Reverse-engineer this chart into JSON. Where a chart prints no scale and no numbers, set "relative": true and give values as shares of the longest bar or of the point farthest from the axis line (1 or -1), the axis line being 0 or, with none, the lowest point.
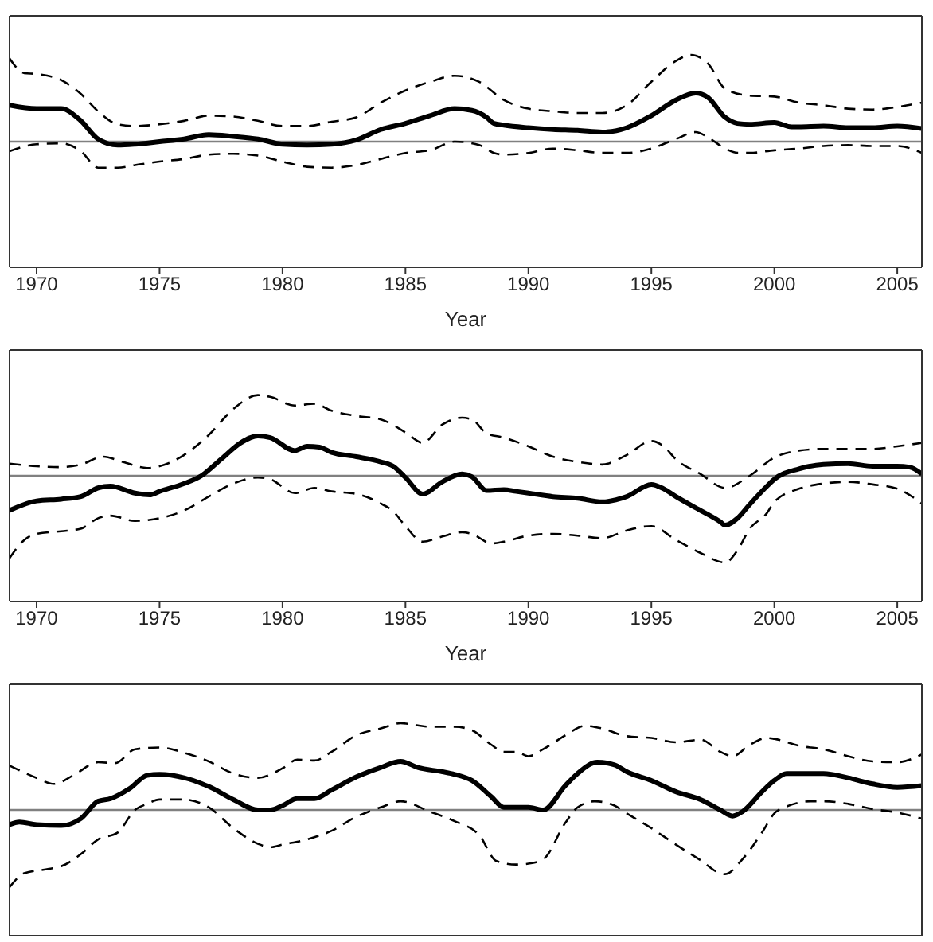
{
  "chart_data": [
    {
      "type": "line",
      "relative": true,
      "xlabel": "Year",
      "xlim": [
        1968.9,
        2006
      ],
      "xticks": [
        1970,
        1975,
        1980,
        1985,
        1990,
        1995,
        2000,
        2005
      ],
      "tick_labels": "x",
      "marker": "none",
      "ref_lines": [
        {
          "axis": "y",
          "value": 0,
          "color": "#808080"
        }
      ],
      "series": [
        {
          "color": "#000000",
          "line_style": "solid",
          "x": [
            1968.9,
            1970,
            1971,
            1971.8,
            1972.5,
            1973.3,
            1974,
            1975,
            1976,
            1977,
            1978,
            1979,
            1980,
            1981,
            1982,
            1983,
            1984,
            1985,
            1986,
            1987,
            1987.7,
            1988.3,
            1988.6,
            1989,
            1990,
            1991,
            1992,
            1993,
            1994,
            1995,
            1996,
            1996.8,
            1997.3,
            1998,
            1998.5,
            1999,
            2000,
            2000.7,
            2001,
            2002,
            2003,
            2004,
            2005,
            2006
          ],
          "values": [
            0.42,
            0.38,
            0.38,
            0.24,
            0.03,
            -0.04,
            -0.03,
            0,
            0.03,
            0.08,
            0.06,
            0.03,
            -0.03,
            -0.04,
            -0.03,
            0.02,
            0.14,
            0.21,
            0.3,
            0.38,
            0.36,
            0.28,
            0.21,
            0.19,
            0.16,
            0.14,
            0.13,
            0.11,
            0.16,
            0.3,
            0.48,
            0.56,
            0.51,
            0.28,
            0.21,
            0.2,
            0.22,
            0.17,
            0.17,
            0.18,
            0.16,
            0.16,
            0.18,
            0.15
          ]
        },
        {
          "color": "#000000",
          "line_style": "dashed",
          "x": [
            1968.9,
            1969.5,
            1970,
            1971,
            1971.8,
            1972.5,
            1973.3,
            1974,
            1975,
            1976,
            1977,
            1978,
            1979,
            1980,
            1981,
            1982,
            1983,
            1984,
            1985,
            1986,
            1987,
            1988,
            1989,
            1990,
            1991,
            1992,
            1993,
            1994,
            1995,
            1996,
            1996.6,
            1997.3,
            1998,
            1999,
            2000,
            2001,
            2002,
            2003,
            2004,
            2005,
            2006
          ],
          "values": [
            0.96,
            0.79,
            0.78,
            0.71,
            0.55,
            0.35,
            0.2,
            0.18,
            0.2,
            0.24,
            0.3,
            0.29,
            0.24,
            0.18,
            0.18,
            0.23,
            0.28,
            0.45,
            0.59,
            0.69,
            0.76,
            0.69,
            0.48,
            0.38,
            0.35,
            0.33,
            0.33,
            0.42,
            0.69,
            0.93,
            1,
            0.9,
            0.61,
            0.53,
            0.52,
            0.45,
            0.42,
            0.38,
            0.37,
            0.4,
            0.45
          ]
        },
        {
          "color": "#000000",
          "line_style": "dashed",
          "x": [
            1968.9,
            1970,
            1971,
            1971.8,
            1972.5,
            1973.3,
            1974,
            1975,
            1976,
            1977,
            1978,
            1979,
            1980,
            1981,
            1982,
            1983,
            1984,
            1985,
            1986,
            1987,
            1988,
            1988.6,
            1989,
            1990,
            1991,
            1992,
            1993,
            1994,
            1995,
            1996,
            1996.8,
            1997.3,
            1998,
            1998.5,
            1999,
            2000,
            2001,
            2002,
            2003,
            2004,
            2005,
            2006
          ],
          "values": [
            -0.11,
            -0.03,
            -0.02,
            -0.11,
            -0.3,
            -0.3,
            -0.27,
            -0.23,
            -0.2,
            -0.15,
            -0.14,
            -0.16,
            -0.23,
            -0.29,
            -0.3,
            -0.27,
            -0.2,
            -0.13,
            -0.1,
            0,
            -0.04,
            -0.13,
            -0.15,
            -0.13,
            -0.08,
            -0.1,
            -0.13,
            -0.13,
            -0.08,
            0.03,
            0.11,
            0.05,
            -0.08,
            -0.13,
            -0.13,
            -0.1,
            -0.08,
            -0.05,
            -0.04,
            -0.05,
            -0.05,
            -0.13
          ]
        }
      ]
    },
    {
      "type": "line",
      "relative": true,
      "xlabel": "Year",
      "xlim": [
        1968.9,
        2006
      ],
      "xticks": [
        1970,
        1975,
        1980,
        1985,
        1990,
        1995,
        2000,
        2005
      ],
      "tick_labels": "x",
      "marker": "none",
      "ref_lines": [
        {
          "axis": "y",
          "value": 0,
          "color": "#808080"
        }
      ],
      "series": [
        {
          "color": "#000000",
          "line_style": "solid",
          "x": [
            1968.9,
            1970,
            1971,
            1971.8,
            1972.5,
            1973,
            1974,
            1974.6,
            1975,
            1976,
            1976.7,
            1977.5,
            1978.3,
            1979,
            1979.5,
            1980.5,
            1981,
            1981.5,
            1982,
            1983,
            1984,
            1984.5,
            1985,
            1985.7,
            1986.5,
            1987.3,
            1987.7,
            1988.3,
            1989,
            1989.5,
            1990,
            1991,
            1992,
            1993,
            1994,
            1995,
            1995.5,
            1996,
            1997,
            1997.8,
            1998,
            1998.5,
            1999,
            1999.7,
            2000,
            2001,
            2002,
            2003,
            2004,
            2005,
            2005.5,
            2006
          ],
          "values": [
            -0.4,
            -0.29,
            -0.27,
            -0.24,
            -0.14,
            -0.12,
            -0.2,
            -0.22,
            -0.18,
            -0.09,
            0.0,
            0.19,
            0.38,
            0.46,
            0.44,
            0.29,
            0.34,
            0.33,
            0.27,
            0.22,
            0.16,
            0.11,
            -0.02,
            -0.21,
            -0.07,
            0.02,
            -0.01,
            -0.17,
            -0.16,
            -0.18,
            -0.2,
            -0.24,
            -0.26,
            -0.3,
            -0.24,
            -0.1,
            -0.15,
            -0.24,
            -0.4,
            -0.53,
            -0.57,
            -0.49,
            -0.33,
            -0.12,
            -0.04,
            0.08,
            0.13,
            0.14,
            0.11,
            0.11,
            0.1,
            0.02
          ]
        },
        {
          "color": "#000000",
          "line_style": "dashed",
          "x": [
            1968.9,
            1970,
            1971,
            1971.8,
            1972.7,
            1973.5,
            1974.5,
            1975,
            1976,
            1977,
            1978,
            1979,
            1979.5,
            1980.5,
            1981.3,
            1982,
            1983,
            1984,
            1985,
            1985.7,
            1986.5,
            1987.3,
            1987.7,
            1988.3,
            1989,
            1990,
            1991,
            1992,
            1993,
            1994,
            1995,
            1995.5,
            1996,
            1997,
            1998,
            1999,
            2000,
            2001,
            2002,
            2003,
            2004,
            2005,
            2006
          ],
          "values": [
            0.14,
            0.11,
            0.1,
            0.13,
            0.22,
            0.16,
            0.09,
            0.11,
            0.24,
            0.47,
            0.77,
            0.93,
            0.91,
            0.81,
            0.83,
            0.75,
            0.69,
            0.65,
            0.5,
            0.38,
            0.59,
            0.67,
            0.65,
            0.49,
            0.44,
            0.34,
            0.22,
            0.16,
            0.13,
            0.24,
            0.4,
            0.34,
            0.19,
            0.02,
            -0.14,
            0.0,
            0.21,
            0.29,
            0.31,
            0.31,
            0.31,
            0.34,
            0.38
          ]
        },
        {
          "color": "#000000",
          "line_style": "dashed",
          "x": [
            1968.9,
            1969.5,
            1970,
            1971,
            1971.8,
            1972.5,
            1973,
            1974,
            1975,
            1976,
            1977,
            1978,
            1979,
            1979.5,
            1980.5,
            1981.3,
            1982,
            1983,
            1984,
            1984.5,
            1985,
            1985.7,
            1986.5,
            1987.3,
            1987.7,
            1988.5,
            1989,
            1990,
            1991,
            1992,
            1993,
            1994,
            1995,
            1996,
            1997,
            1998,
            1998.5,
            1999,
            1999.7,
            2000,
            2001,
            2002,
            2003,
            2004,
            2005,
            2006
          ],
          "values": [
            -0.95,
            -0.74,
            -0.67,
            -0.64,
            -0.61,
            -0.49,
            -0.46,
            -0.52,
            -0.49,
            -0.4,
            -0.24,
            -0.09,
            -0.02,
            -0.04,
            -0.2,
            -0.14,
            -0.18,
            -0.21,
            -0.32,
            -0.41,
            -0.58,
            -0.76,
            -0.7,
            -0.65,
            -0.67,
            -0.78,
            -0.76,
            -0.69,
            -0.67,
            -0.69,
            -0.72,
            -0.63,
            -0.58,
            -0.74,
            -0.89,
            -1,
            -0.86,
            -0.61,
            -0.43,
            -0.3,
            -0.15,
            -0.09,
            -0.07,
            -0.1,
            -0.15,
            -0.32
          ]
        }
      ]
    },
    {
      "type": "line",
      "relative": true,
      "xlim": [
        1968.9,
        2006
      ],
      "xticks": [
        1970,
        1975,
        1980,
        1985,
        1990,
        1995,
        2000,
        2005
      ],
      "tick_labels": false,
      "marker": "none",
      "ref_lines": [
        {
          "axis": "y",
          "value": 0,
          "color": "#808080"
        }
      ],
      "series": [
        {
          "color": "#000000",
          "line_style": "solid",
          "x": [
            1968.9,
            1969.3,
            1970,
            1971,
            1971.8,
            1972.5,
            1973,
            1973.8,
            1974.5,
            1975,
            1976,
            1977,
            1978,
            1979,
            1979.5,
            1980,
            1980.6,
            1981.3,
            1982,
            1983,
            1984,
            1984.8,
            1985.5,
            1986.5,
            1987,
            1987.7,
            1988.5,
            1989,
            1990,
            1990.6,
            1991.5,
            1992,
            1992.8,
            1993.5,
            1994,
            1995,
            1996,
            1997,
            1997.8,
            1998.3,
            1998.7,
            1999.5,
            2000,
            2000.5,
            2001,
            2002,
            2003,
            2004,
            2005,
            2006
          ],
          "values": [
            -0.17,
            -0.14,
            -0.17,
            -0.18,
            -0.1,
            0.1,
            0.13,
            0.25,
            0.4,
            0.41,
            0.37,
            0.27,
            0.12,
            0.0,
            0.0,
            0.05,
            0.13,
            0.13,
            0.23,
            0.38,
            0.49,
            0.56,
            0.49,
            0.44,
            0.41,
            0.34,
            0.15,
            0.03,
            0.03,
            0.0,
            0.28,
            0.42,
            0.55,
            0.52,
            0.44,
            0.34,
            0.21,
            0.12,
            0.0,
            -0.07,
            -0.02,
            0.21,
            0.34,
            0.42,
            0.42,
            0.42,
            0.37,
            0.3,
            0.26,
            0.28
          ]
        },
        {
          "color": "#000000",
          "line_style": "dashed",
          "x": [
            1968.9,
            1970,
            1970.7,
            1971.5,
            1972.5,
            1973.2,
            1974,
            1975,
            1976,
            1977,
            1978,
            1979,
            1980,
            1980.6,
            1981.3,
            1982,
            1983,
            1984,
            1984.8,
            1986,
            1987,
            1987.7,
            1988.5,
            1989,
            1989.5,
            1990,
            1990.6,
            1991.5,
            1992.3,
            1993,
            1994,
            1995,
            1996,
            1997,
            1997.8,
            1998.3,
            1999,
            1999.7,
            2000,
            2001,
            2002,
            2003,
            2004,
            2005,
            2006
          ],
          "values": [
            0.51,
            0.37,
            0.3,
            0.4,
            0.55,
            0.54,
            0.7,
            0.72,
            0.66,
            0.56,
            0.42,
            0.37,
            0.48,
            0.58,
            0.57,
            0.67,
            0.86,
            0.94,
            1,
            0.96,
            0.96,
            0.92,
            0.75,
            0.67,
            0.67,
            0.62,
            0.7,
            0.86,
            0.97,
            0.94,
            0.85,
            0.83,
            0.78,
            0.81,
            0.67,
            0.62,
            0.75,
            0.83,
            0.82,
            0.74,
            0.7,
            0.62,
            0.56,
            0.55,
            0.64
          ]
        },
        {
          "color": "#000000",
          "line_style": "dashed",
          "x": [
            1968.9,
            1969.5,
            1970.5,
            1971,
            1971.8,
            1972.5,
            1973.3,
            1974,
            1974.5,
            1975,
            1976,
            1977,
            1978,
            1979,
            1979.5,
            1980,
            1981,
            1982,
            1983,
            1984,
            1984.8,
            1986,
            1987,
            1988,
            1988.7,
            1989.5,
            1990,
            1990.6,
            1991.5,
            1992,
            1992.7,
            1993.5,
            1994,
            1995,
            1996,
            1997,
            1997.8,
            1998,
            1998.7,
            1999.5,
            2000,
            2000.5,
            2001.5,
            2002,
            2003,
            2004,
            2005,
            2006
          ],
          "values": [
            -0.89,
            -0.73,
            -0.68,
            -0.65,
            -0.51,
            -0.34,
            -0.26,
            0.0,
            0.07,
            0.12,
            0.12,
            0.03,
            -0.21,
            -0.39,
            -0.43,
            -0.4,
            -0.34,
            -0.24,
            -0.08,
            0.03,
            0.1,
            -0.02,
            -0.13,
            -0.29,
            -0.59,
            -0.63,
            -0.62,
            -0.57,
            -0.15,
            0.03,
            0.1,
            0.05,
            -0.04,
            -0.21,
            -0.4,
            -0.58,
            -0.73,
            -0.74,
            -0.57,
            -0.26,
            -0.04,
            0.04,
            0.1,
            0.1,
            0.07,
            0.01,
            -0.03,
            -0.1
          ]
        }
      ]
    }
  ]
}
